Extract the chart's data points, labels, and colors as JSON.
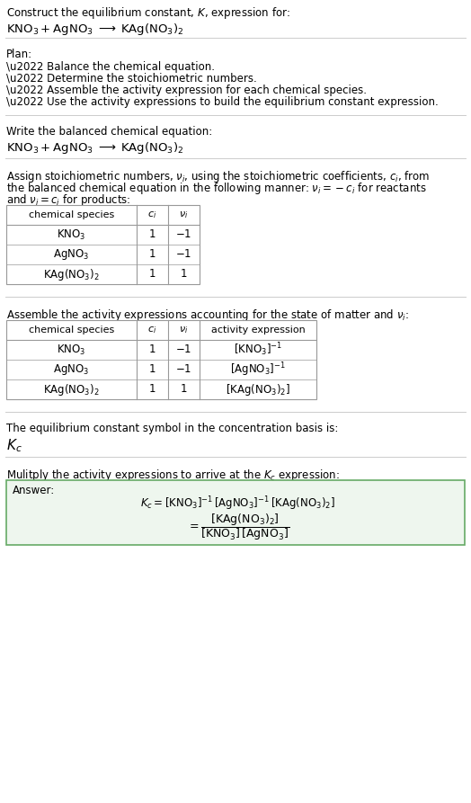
{
  "bg_color": "#ffffff",
  "divider_color": "#cccccc",
  "table_border_color": "#999999",
  "answer_box_color": "#eef6ee",
  "answer_box_border": "#66aa66",
  "font_size_body": 8.5,
  "font_size_eq": 9.5,
  "font_size_small": 8.0,
  "font_size_kc": 11.0,
  "section1_line1": "Construct the equilibrium constant, $K$, expression for:",
  "section1_line2": "$\\mathrm{KNO_3 + AgNO_3 \\;\\longrightarrow\\; KAg(NO_3)_2}$",
  "plan_header": "Plan:",
  "plan_bullets": [
    "\\u2022 Balance the chemical equation.",
    "\\u2022 Determine the stoichiometric numbers.",
    "\\u2022 Assemble the activity expression for each chemical species.",
    "\\u2022 Use the activity expressions to build the equilibrium constant expression."
  ],
  "balanced_header": "Write the balanced chemical equation:",
  "balanced_eq": "$\\mathrm{KNO_3 + AgNO_3 \\;\\longrightarrow\\; KAg(NO_3)_2}$",
  "assign_line1": "Assign stoichiometric numbers, $\\nu_i$, using the stoichiometric coefficients, $c_i$, from",
  "assign_line2": "the balanced chemical equation in the following manner: $\\nu_i = -c_i$ for reactants",
  "assign_line3": "and $\\nu_i = c_i$ for products:",
  "t1_h": [
    "chemical species",
    "$c_i$",
    "$\\nu_i$"
  ],
  "t1_rows": [
    [
      "$\\mathrm{KNO_3}$",
      "1",
      "$-1$"
    ],
    [
      "$\\mathrm{AgNO_3}$",
      "1",
      "$-1$"
    ],
    [
      "$\\mathrm{KAg(NO_3)_2}$",
      "1",
      "1"
    ]
  ],
  "assemble_line": "Assemble the activity expressions accounting for the state of matter and $\\nu_i$:",
  "t2_h": [
    "chemical species",
    "$c_i$",
    "$\\nu_i$",
    "activity expression"
  ],
  "t2_rows": [
    [
      "$\\mathrm{KNO_3}$",
      "1",
      "$-1$",
      "$[\\mathrm{KNO_3}]^{-1}$"
    ],
    [
      "$\\mathrm{AgNO_3}$",
      "1",
      "$-1$",
      "$[\\mathrm{AgNO_3}]^{-1}$"
    ],
    [
      "$\\mathrm{KAg(NO_3)_2}$",
      "1",
      "1",
      "$[\\mathrm{KAg(NO_3)_2}]$"
    ]
  ],
  "kc_line": "The equilibrium constant symbol in the concentration basis is:",
  "kc_sym": "$K_c$",
  "mult_line": "Mulitply the activity expressions to arrive at the $K_c$ expression:",
  "ans_label": "Answer:",
  "ans_eq_line1": "$K_c = [\\mathrm{KNO_3}]^{-1}\\,[\\mathrm{AgNO_3}]^{-1}\\,[\\mathrm{KAg(NO_3)_2}]$",
  "ans_eq_line2": "$= \\dfrac{[\\mathrm{KAg(NO_3)_2}]}{[\\mathrm{KNO_3}]\\,[\\mathrm{AgNO_3}]}$"
}
